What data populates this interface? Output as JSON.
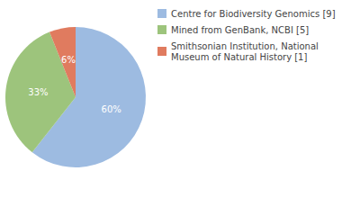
{
  "chart_data": {
    "type": "pie",
    "categories": [
      "Centre for Biodiversity Genomics [9]",
      "Mined from GenBank, NCBI [5]",
      "Smithsonian Institution, National Museum of Natural History [1]"
    ],
    "values": [
      60,
      33,
      6
    ],
    "value_labels": [
      "60%",
      "33%",
      "6%"
    ],
    "colors": [
      "#9dbbe1",
      "#9dc47c",
      "#e07b5f"
    ],
    "data_labels": true,
    "legend": "top-right"
  }
}
